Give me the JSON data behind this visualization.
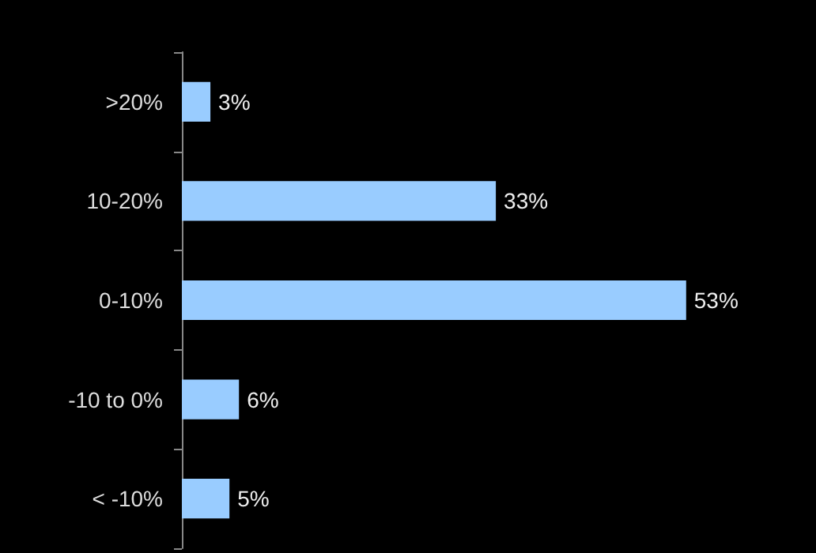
{
  "chart_data": {
    "type": "bar",
    "orientation": "horizontal",
    "categories": [
      ">20%",
      "10-20%",
      "0-10%",
      "-10 to 0%",
      "< -10%"
    ],
    "values": [
      3,
      33,
      53,
      6,
      5
    ],
    "color": "#99ccff",
    "value_labels": [
      "3%",
      "33%",
      "53%",
      "6%",
      "5%"
    ],
    "tick_labels": "y"
  }
}
